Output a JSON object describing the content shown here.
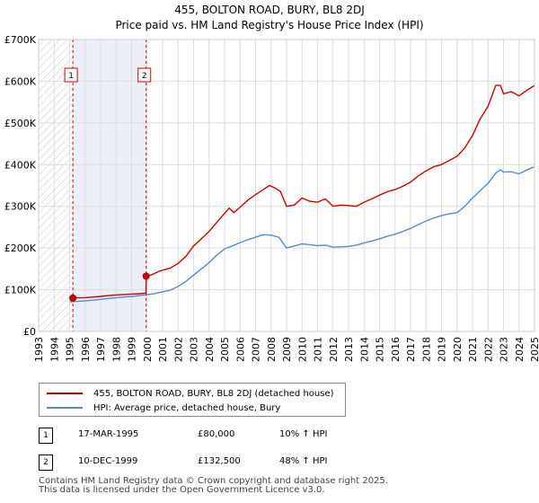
{
  "title_line1": "455, BOLTON ROAD, BURY, BL8 2DJ",
  "title_line2": "Price paid vs. HM Land Registry's House Price Index (HPI)",
  "colors": {
    "property": "#cc0000",
    "hpi": "#5b8ac6",
    "marker": "#cc0000",
    "shade": "#eceef8",
    "grid": "#dddddd"
  },
  "legend": {
    "property_label": "455, BOLTON ROAD, BURY, BL8 2DJ (detached house)",
    "hpi_label": "HPI: Average price, detached house, Bury"
  },
  "sales": [
    {
      "num": "1",
      "date": "17-MAR-1995",
      "price": "£80,000",
      "hpi_change": "10% ↑ HPI"
    },
    {
      "num": "2",
      "date": "10-DEC-1999",
      "price": "£132,500",
      "hpi_change": "48% ↑ HPI"
    }
  ],
  "footer_line1": "Contains HM Land Registry data © Crown copyright and database right 2025.",
  "footer_line2": "This data is licensed under the Open Government Licence v3.0.",
  "chart_data": {
    "type": "line",
    "title": "455, BOLTON ROAD, BURY, BL8 2DJ",
    "subtitle": "Price paid vs. HM Land Registry's House Price Index (HPI)",
    "xlim": [
      1993,
      2025
    ],
    "ylim": [
      0,
      700000
    ],
    "x_ticks": [
      1993,
      1994,
      1995,
      1996,
      1997,
      1998,
      1999,
      2000,
      2001,
      2002,
      2003,
      2004,
      2005,
      2006,
      2007,
      2008,
      2009,
      2010,
      2011,
      2012,
      2013,
      2014,
      2015,
      2016,
      2017,
      2018,
      2019,
      2020,
      2021,
      2022,
      2023,
      2024,
      2025
    ],
    "y_ticks": [
      {
        "value": 0,
        "label": "£0"
      },
      {
        "value": 100000,
        "label": "£100K"
      },
      {
        "value": 200000,
        "label": "£200K"
      },
      {
        "value": 300000,
        "label": "£300K"
      },
      {
        "value": 400000,
        "label": "£400K"
      },
      {
        "value": 500000,
        "label": "£500K"
      },
      {
        "value": 600000,
        "label": "£600K"
      },
      {
        "value": 700000,
        "label": "£700K"
      }
    ],
    "grid": true,
    "hatched_range": [
      1993,
      1995.21
    ],
    "shaded_range": [
      1995.21,
      1999.94
    ],
    "annotations": [
      {
        "label": "1",
        "x": 1995.21,
        "y": 80000
      },
      {
        "label": "2",
        "x": 1999.94,
        "y": 132500
      }
    ],
    "series": [
      {
        "name": "455, BOLTON ROAD, BURY, BL8 2DJ (detached house)",
        "color": "#cc0000",
        "points": [
          [
            1995.21,
            80000
          ],
          [
            1995.5,
            80500
          ],
          [
            1996,
            81000
          ],
          [
            1996.5,
            82500
          ],
          [
            1997,
            84000
          ],
          [
            1997.5,
            86000
          ],
          [
            1998,
            87500
          ],
          [
            1998.5,
            88500
          ],
          [
            1999,
            89500
          ],
          [
            1999.5,
            90500
          ],
          [
            1999.93,
            92000
          ],
          [
            1999.94,
            132500
          ],
          [
            2000.3,
            136000
          ],
          [
            2000.7,
            143000
          ],
          [
            2001,
            147000
          ],
          [
            2001.5,
            152000
          ],
          [
            2002,
            163000
          ],
          [
            2002.5,
            180000
          ],
          [
            2003,
            205000
          ],
          [
            2003.5,
            222000
          ],
          [
            2004,
            240000
          ],
          [
            2004.5,
            262000
          ],
          [
            2005,
            283000
          ],
          [
            2005.3,
            296000
          ],
          [
            2005.6,
            285000
          ],
          [
            2006,
            298000
          ],
          [
            2006.5,
            315000
          ],
          [
            2007,
            328000
          ],
          [
            2007.5,
            340000
          ],
          [
            2007.9,
            350000
          ],
          [
            2008.2,
            345000
          ],
          [
            2008.6,
            336000
          ],
          [
            2009,
            300000
          ],
          [
            2009.5,
            303000
          ],
          [
            2010,
            320000
          ],
          [
            2010.5,
            312000
          ],
          [
            2011,
            310000
          ],
          [
            2011.5,
            318000
          ],
          [
            2012,
            300000
          ],
          [
            2012.5,
            303000
          ],
          [
            2013,
            302000
          ],
          [
            2013.5,
            300000
          ],
          [
            2014,
            310000
          ],
          [
            2014.5,
            318000
          ],
          [
            2015,
            327000
          ],
          [
            2015.5,
            335000
          ],
          [
            2016,
            340000
          ],
          [
            2016.5,
            348000
          ],
          [
            2017,
            358000
          ],
          [
            2017.5,
            373000
          ],
          [
            2018,
            385000
          ],
          [
            2018.5,
            395000
          ],
          [
            2019,
            400000
          ],
          [
            2019.5,
            410000
          ],
          [
            2020,
            420000
          ],
          [
            2020.5,
            440000
          ],
          [
            2021,
            470000
          ],
          [
            2021.5,
            510000
          ],
          [
            2022,
            540000
          ],
          [
            2022.5,
            590000
          ],
          [
            2022.8,
            590000
          ],
          [
            2023,
            570000
          ],
          [
            2023.5,
            575000
          ],
          [
            2024,
            565000
          ],
          [
            2024.5,
            578000
          ],
          [
            2025,
            590000
          ]
        ]
      },
      {
        "name": "HPI: Average price, detached house, Bury",
        "color": "#5b8ac6",
        "points": [
          [
            1995,
            71000
          ],
          [
            1995.5,
            72000
          ],
          [
            1996,
            73500
          ],
          [
            1996.5,
            75000
          ],
          [
            1997,
            77000
          ],
          [
            1997.5,
            79000
          ],
          [
            1998,
            81000
          ],
          [
            1998.5,
            82500
          ],
          [
            1999,
            84000
          ],
          [
            1999.5,
            86000
          ],
          [
            2000,
            88000
          ],
          [
            2000.5,
            91000
          ],
          [
            2001,
            95000
          ],
          [
            2001.5,
            99000
          ],
          [
            2002,
            108000
          ],
          [
            2002.5,
            120000
          ],
          [
            2003,
            135000
          ],
          [
            2003.5,
            150000
          ],
          [
            2004,
            165000
          ],
          [
            2004.5,
            183000
          ],
          [
            2005,
            198000
          ],
          [
            2005.5,
            205000
          ],
          [
            2006,
            213000
          ],
          [
            2006.5,
            220000
          ],
          [
            2007,
            226000
          ],
          [
            2007.5,
            232000
          ],
          [
            2008,
            231000
          ],
          [
            2008.5,
            226000
          ],
          [
            2009,
            200000
          ],
          [
            2009.5,
            205000
          ],
          [
            2010,
            210000
          ],
          [
            2010.5,
            208000
          ],
          [
            2011,
            206000
          ],
          [
            2011.5,
            207000
          ],
          [
            2012,
            202000
          ],
          [
            2012.5,
            203000
          ],
          [
            2013,
            204000
          ],
          [
            2013.5,
            207000
          ],
          [
            2014,
            212000
          ],
          [
            2014.5,
            217000
          ],
          [
            2015,
            222000
          ],
          [
            2015.5,
            228000
          ],
          [
            2016,
            233000
          ],
          [
            2016.5,
            240000
          ],
          [
            2017,
            247000
          ],
          [
            2017.5,
            256000
          ],
          [
            2018,
            265000
          ],
          [
            2018.5,
            272000
          ],
          [
            2019,
            278000
          ],
          [
            2019.5,
            282000
          ],
          [
            2020,
            285000
          ],
          [
            2020.5,
            300000
          ],
          [
            2021,
            320000
          ],
          [
            2021.5,
            338000
          ],
          [
            2022,
            355000
          ],
          [
            2022.5,
            380000
          ],
          [
            2022.8,
            388000
          ],
          [
            2023,
            382000
          ],
          [
            2023.5,
            383000
          ],
          [
            2024,
            378000
          ],
          [
            2024.5,
            387000
          ],
          [
            2025,
            395000
          ]
        ]
      }
    ]
  }
}
